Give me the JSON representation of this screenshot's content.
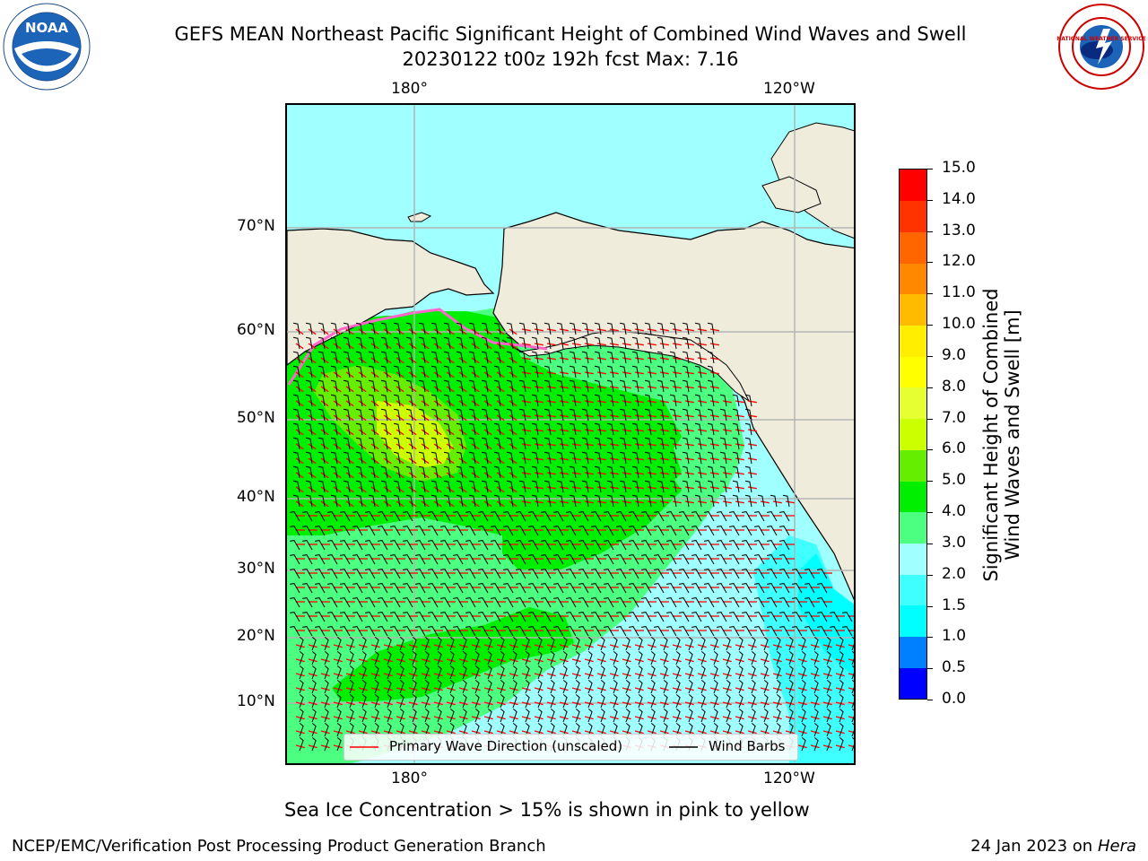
{
  "header": {
    "title_line1": "GEFS MEAN Northeast Pacific Significant Height of Combined Wind Waves and Swell",
    "title_line2": "20230122 t00z 192h fcst   Max: 7.16"
  },
  "logos": {
    "left": {
      "name": "noaa-logo",
      "text": "NOAA"
    },
    "right": {
      "name": "national-weather-service-logo",
      "text": "NATIONAL WEATHER SERVICE"
    }
  },
  "map": {
    "lon_labels_top": [
      "180°",
      "120°W"
    ],
    "lon_labels_bottom": [
      "180°",
      "120°W"
    ],
    "lat_labels": [
      "70°N",
      "60°N",
      "50°N",
      "40°N",
      "30°N",
      "20°N",
      "10°N"
    ],
    "colors": {
      "land": "#efecdc",
      "coast": "#000000",
      "grid": "#b3b3b3",
      "arrow": "#ff0000",
      "barb": "#000000"
    }
  },
  "legend": {
    "wave_dir_label": "Primary Wave Direction (unscaled)",
    "wind_barbs_label": "Wind Barbs"
  },
  "colorbar": {
    "title_line1": "Significant Height of Combined",
    "title_line2": "Wind Waves and Swell [m]",
    "levels": [
      "0.0",
      "0.5",
      "1.0",
      "1.5",
      "2.0",
      "3.0",
      "4.0",
      "5.0",
      "6.0",
      "7.0",
      "8.0",
      "9.0",
      "10.0",
      "11.0",
      "12.0",
      "13.0",
      "14.0",
      "15.0"
    ],
    "colors": [
      "#0000ff",
      "#0080ff",
      "#00ffff",
      "#40ffff",
      "#a0ffff",
      "#4dff80",
      "#00ee00",
      "#66ee00",
      "#ccff00",
      "#e6ff33",
      "#ffff00",
      "#ffee00",
      "#ffbb00",
      "#ff8800",
      "#ff6600",
      "#ff3300",
      "#ff0000"
    ]
  },
  "footer": {
    "note": "Sea Ice Concentration > 15% is shown in pink to yellow",
    "branch": "NCEP/EMC/Verification Post Processing Product Generation Branch",
    "date": "24 Jan 2023 on ",
    "machine": "Hera"
  }
}
